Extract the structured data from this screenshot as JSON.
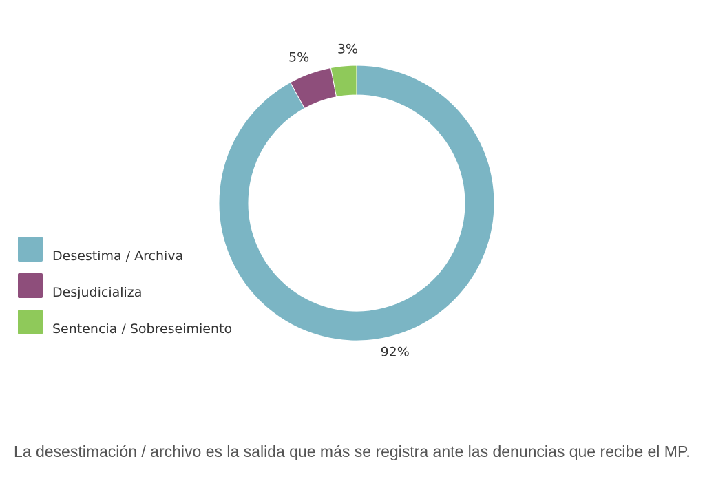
{
  "chart_data": {
    "type": "pie",
    "subtype": "donut",
    "legend_position": "left",
    "series": [
      {
        "name": "Desestima / Archiva",
        "value": 92,
        "label": "92%",
        "color": "#7bb5c4"
      },
      {
        "name": "Desjudicializa",
        "value": 5,
        "label": "5%",
        "color": "#8e4e7b"
      },
      {
        "name": "Sentencia / Sobreseimiento",
        "value": 3,
        "label": "3%",
        "color": "#8fc95a"
      }
    ]
  },
  "caption": {
    "text": "La desestimación / archivo es la salida que más se registra ante las denuncias que recibe el MP."
  }
}
